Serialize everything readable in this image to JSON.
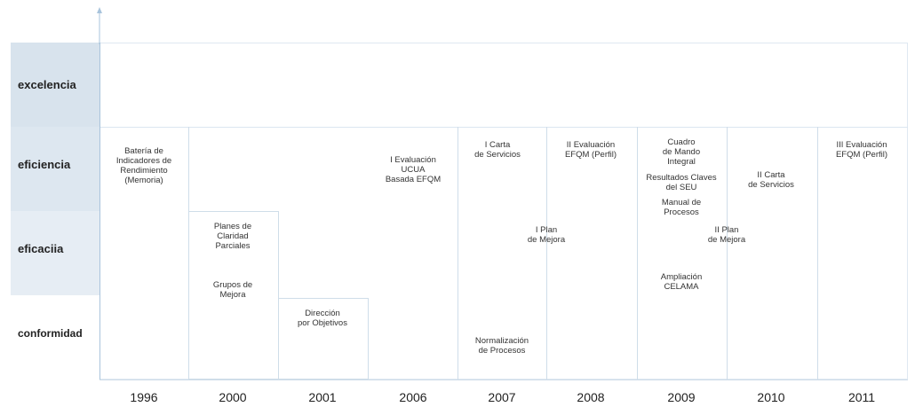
{
  "levels": {
    "excelencia": "excelencia",
    "eficiencia": "eficiencia",
    "eficacia": "eficaciia",
    "conformidad": "conformidad"
  },
  "years": [
    "1996",
    "2000",
    "2001",
    "2006",
    "2007",
    "2008",
    "2009",
    "2010",
    "2011"
  ],
  "events": {
    "e1996": "Batería de\nIndicadores de\nRendimiento\n(Memoria)",
    "e2000a": "Planes de\nClaridad\nParciales",
    "e2000b": "Grupos de\nMejora",
    "e2001": "Dirección\npor Objetivos",
    "e2006": "I Evaluación\nUCUA\nBasada EFQM",
    "e2007a": "I Carta\nde Servicios",
    "e2007b": "Normalización\nde Procesos",
    "e2007c": "I Plan\nde Mejora",
    "e2008": "II Evaluación\nEFQM (Perfil)",
    "e2009a": "Cuadro\nde Mando\nIntegral",
    "e2009b": "Resultados Claves\ndel SEU",
    "e2009c": "Manual de\nProcesos",
    "e2009d": "Ampliación\nCELAMA",
    "e2009e": "II Plan\nde Mejora",
    "e2010": "II Carta\nde Servicios",
    "e2011": "III Evaluación\nEFQM (Perfil)"
  },
  "colors": {
    "label_band": "#d7e2ec",
    "grid": "#cfdde9",
    "axis": "#a9c4dc"
  }
}
